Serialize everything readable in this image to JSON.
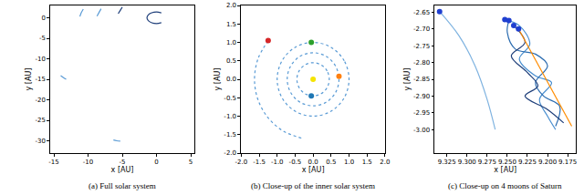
{
  "chart_data": [
    {
      "type": "line",
      "title": "(a) Full solar system",
      "x_label": "x [AU]",
      "y_label": "y [AU]",
      "xlim": [
        -15.5,
        5.5
      ],
      "ylim": [
        -33,
        3
      ],
      "xticks": [
        -15,
        -10,
        -5,
        0,
        5
      ],
      "yticks": [
        -30,
        -25,
        -20,
        -15,
        -10,
        -5,
        0
      ],
      "grid": false,
      "series": [
        {
          "type": "line",
          "color": "#1f3f7a",
          "line_style": "solid",
          "x": [
            0.7,
            0,
            -0.7,
            -1.21,
            -1.4,
            -1.21,
            -0.7,
            0,
            0.7
          ],
          "values": [
            1.21,
            1.4,
            1.21,
            0.7,
            0,
            -0.7,
            -1.21,
            -1.4,
            -1.21
          ]
        },
        {
          "type": "line",
          "color": "#5a9bd5",
          "line_style": "solid",
          "x": [
            -11.2,
            -11.0,
            -10.7
          ],
          "values": [
            0.3,
            1.2,
            2.1
          ]
        },
        {
          "type": "line",
          "color": "#5a9bd5",
          "line_style": "solid",
          "x": [
            -8.7,
            -8.4,
            -8.1
          ],
          "values": [
            0.4,
            1.3,
            2.2
          ]
        },
        {
          "type": "line",
          "color": "#1f3f7a",
          "line_style": "solid",
          "x": [
            -5.6,
            -5.3,
            -5.0
          ],
          "values": [
            1.0,
            1.8,
            2.6
          ]
        },
        {
          "type": "line",
          "color": "#5a9bd5",
          "line_style": "solid",
          "x": [
            -14.0,
            -13.6,
            -13.2
          ],
          "values": [
            -14.1,
            -14.6,
            -15.0
          ]
        },
        {
          "type": "line",
          "color": "#5a9bd5",
          "line_style": "solid",
          "x": [
            -6.3,
            -5.8,
            -5.3
          ],
          "values": [
            -29.8,
            -30.0,
            -30.1
          ]
        }
      ]
    },
    {
      "type": "line",
      "title": "(b) Close-up of the inner solar system",
      "x_label": "x [AU]",
      "y_label": "y [AU]",
      "xlim": [
        -2,
        2
      ],
      "ylim": [
        -2,
        2
      ],
      "xticks": [
        {
          "value": -2,
          "label": "-2.0"
        },
        -1.5,
        {
          "value": -1,
          "label": "-1.0"
        },
        -0.5,
        {
          "value": 0,
          "label": "0.0"
        },
        0.5,
        {
          "value": 1,
          "label": "1.0"
        },
        1.5,
        {
          "value": 2,
          "label": "2.0"
        }
      ],
      "yticks": [
        {
          "value": -2,
          "label": "-2.0"
        },
        -1.5,
        {
          "value": -1,
          "label": "-1.0"
        },
        -0.5,
        {
          "value": 0,
          "label": "0.0"
        },
        0.5,
        {
          "value": 1,
          "label": "1.0"
        },
        1.5,
        {
          "value": 2,
          "label": "2.0"
        }
      ],
      "grid": false,
      "series": [
        {
          "type": "line",
          "color": "#5a9bd5",
          "line_style": "dotted",
          "x": [
            0.45,
            0.39,
            0.225,
            0,
            -0.225,
            -0.39,
            -0.45,
            -0.39,
            -0.225,
            0,
            0.225,
            0.39,
            0.45
          ],
          "values": [
            0,
            0.225,
            0.39,
            0.45,
            0.39,
            0.225,
            0,
            -0.225,
            -0.39,
            -0.45,
            -0.39,
            -0.225,
            0
          ]
        },
        {
          "type": "line",
          "color": "#5a9bd5",
          "line_style": "dotted",
          "x": [
            0.72,
            0.624,
            0.36,
            0,
            -0.36,
            -0.624,
            -0.72,
            -0.624,
            -0.36,
            0,
            0.36,
            0.624,
            0.72
          ],
          "values": [
            0,
            0.36,
            0.624,
            0.72,
            0.624,
            0.36,
            0,
            -0.36,
            -0.624,
            -0.72,
            -0.624,
            -0.36,
            0
          ]
        },
        {
          "type": "line",
          "color": "#5a9bd5",
          "line_style": "dotted",
          "x": [
            1,
            0.866,
            0.5,
            0,
            -0.5,
            -0.866,
            -1,
            -0.866,
            -0.5,
            0,
            0.5,
            0.866,
            1
          ],
          "values": [
            0,
            0.5,
            0.866,
            1,
            0.866,
            0.5,
            0,
            -0.5,
            -0.866,
            -1,
            -0.866,
            -0.5,
            0
          ]
        },
        {
          "type": "line",
          "color": "#5a9bd5",
          "line_style": "dotted",
          "x": [
            -1.249,
            -1.532,
            -1.63,
            -1.532,
            -1.249,
            -0.815,
            -0.283
          ],
          "values": [
            1.048,
            0.557,
            0,
            -0.557,
            -1.048,
            -1.412,
            -1.605
          ]
        },
        {
          "type": "scatter",
          "color": "#f5e400",
          "marker": "circle",
          "x": [
            0
          ],
          "values": [
            0
          ]
        },
        {
          "type": "scatter",
          "color": "#d62728",
          "marker": "circle",
          "x": [
            -1.25
          ],
          "values": [
            1.05
          ]
        },
        {
          "type": "scatter",
          "color": "#2ca02c",
          "marker": "circle",
          "x": [
            -0.05
          ],
          "values": [
            1.0
          ]
        },
        {
          "type": "scatter",
          "color": "#ff7f0e",
          "marker": "circle",
          "x": [
            0.72
          ],
          "values": [
            0.08
          ]
        },
        {
          "type": "scatter",
          "color": "#1f77b4",
          "marker": "circle",
          "x": [
            -0.05
          ],
          "values": [
            -0.45
          ]
        }
      ]
    },
    {
      "type": "line",
      "title": "(c) Close-up on 4 moons of Saturn",
      "x_label": "x [AU]",
      "y_label": "y [AU]",
      "xlim": [
        9.34,
        9.165
      ],
      "ylim": [
        -3.07,
        -2.63
      ],
      "xticks": [
        9.325,
        {
          "value": 9.3,
          "label": "9.300"
        },
        9.275,
        {
          "value": 9.25,
          "label": "9.250"
        },
        9.225,
        {
          "value": 9.2,
          "label": "9.200"
        },
        9.175
      ],
      "yticks": [
        -2.65,
        {
          "value": -2.7,
          "label": "-2.70"
        },
        -2.75,
        {
          "value": -2.8,
          "label": "-2.80"
        },
        -2.85,
        {
          "value": -2.9,
          "label": "-2.90"
        },
        -2.95,
        {
          "value": -3,
          "label": "-3.00"
        }
      ],
      "grid": false,
      "series": [
        {
          "type": "line",
          "color": "#7fb3e0",
          "line_style": "solid",
          "x": [
            9.334,
            9.31,
            9.29,
            9.275,
            9.265
          ],
          "values": [
            -2.648,
            -2.72,
            -2.81,
            -2.91,
            -3.0
          ]
        },
        {
          "type": "line",
          "color": "#4a8fd0",
          "line_style": "solid",
          "x": [
            9.253,
            9.235,
            9.222,
            9.235,
            9.215,
            9.195,
            9.21,
            9.2,
            9.19
          ],
          "values": [
            -2.672,
            -2.69,
            -2.745,
            -2.79,
            -2.84,
            -2.86,
            -2.91,
            -2.96,
            -3.0
          ]
        },
        {
          "type": "line",
          "color": "#2b6cb0",
          "line_style": "solid",
          "x": [
            9.248,
            9.25,
            9.24,
            9.215,
            9.2,
            9.215,
            9.205,
            9.185,
            9.19
          ],
          "values": [
            -2.675,
            -2.71,
            -2.76,
            -2.775,
            -2.81,
            -2.86,
            -2.9,
            -2.93,
            -2.99
          ]
        },
        {
          "type": "line",
          "color": "#1f3f7a",
          "line_style": "solid",
          "x": [
            9.242,
            9.228,
            9.245,
            9.225,
            9.212,
            9.228,
            9.2,
            9.18
          ],
          "values": [
            -2.69,
            -2.74,
            -2.78,
            -2.83,
            -2.87,
            -2.9,
            -2.94,
            -2.98
          ]
        },
        {
          "type": "line",
          "color": "#ff8c00",
          "line_style": "solid",
          "x": [
            9.236,
            9.17
          ],
          "values": [
            -2.7,
            -2.99
          ]
        },
        {
          "type": "scatter",
          "color": "#1f3fd0",
          "marker": "circle",
          "x": [
            9.334,
            9.253,
            9.248,
            9.242,
            9.236
          ],
          "values": [
            -2.648,
            -2.672,
            -2.675,
            -2.69,
            -2.7
          ]
        }
      ]
    }
  ]
}
